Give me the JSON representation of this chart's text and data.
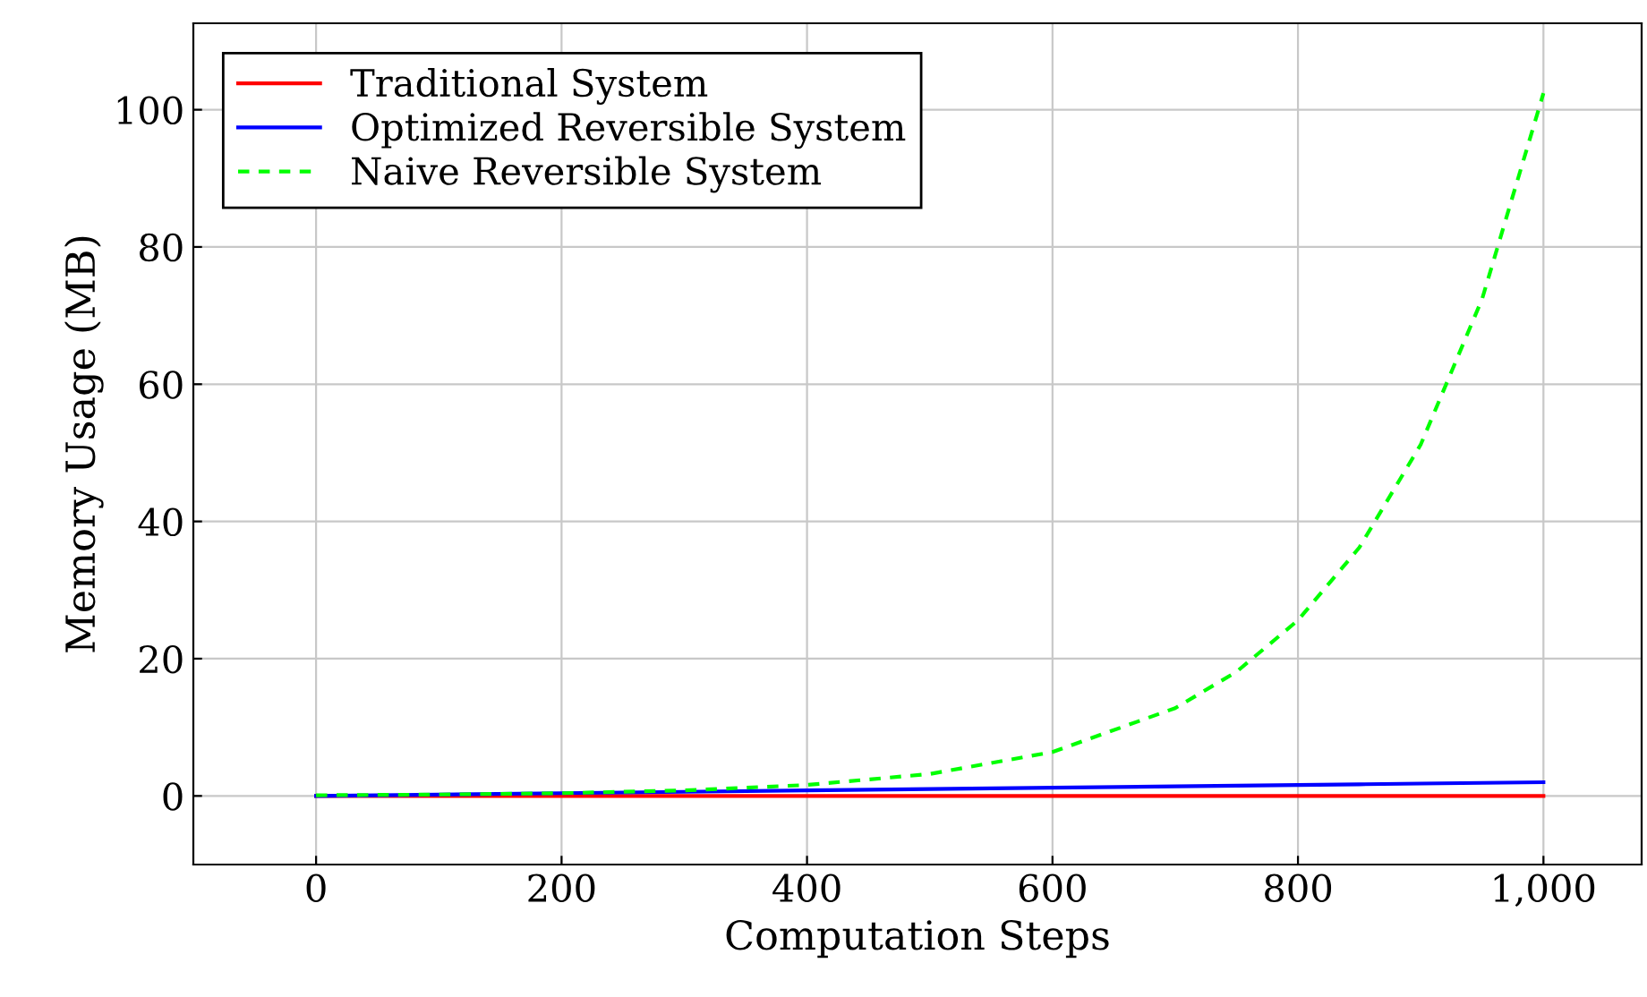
{
  "chart_data": {
    "type": "line",
    "xlabel": "Computation Steps",
    "ylabel": "Memory Usage (MB)",
    "x": [
      0,
      100,
      200,
      300,
      400,
      500,
      600,
      700,
      750,
      800,
      850,
      900,
      950,
      1000
    ],
    "series": [
      {
        "name": "Traditional System",
        "color": "#ff0000",
        "line_style": "solid",
        "values": [
          0,
          0,
          0,
          0,
          0,
          0,
          0,
          0,
          0,
          0,
          0,
          0,
          0,
          0
        ]
      },
      {
        "name": "Optimized Reversible System",
        "color": "#0000ff",
        "line_style": "solid",
        "values": [
          0,
          0.2,
          0.4,
          0.6,
          0.8,
          1.0,
          1.2,
          1.4,
          1.5,
          1.6,
          1.7,
          1.8,
          1.9,
          2.0
        ]
      },
      {
        "name": "Naive Reversible System",
        "color": "#00ff00",
        "line_style": "dashed",
        "values": [
          0.1,
          0.2,
          0.4,
          0.8,
          1.6,
          3.2,
          6.4,
          12.8,
          18.1,
          25.6,
          36.2,
          51.2,
          72.4,
          102.4
        ]
      }
    ],
    "xlim": [
      -100,
      1080
    ],
    "ylim": [
      -10,
      112.6
    ],
    "xticks": [
      0,
      200,
      400,
      600,
      800,
      {
        "value": 1000,
        "label": "1,000"
      }
    ],
    "yticks": [
      0,
      20,
      40,
      60,
      80,
      100
    ],
    "grid": true,
    "legend": "top left",
    "marker": "none"
  }
}
